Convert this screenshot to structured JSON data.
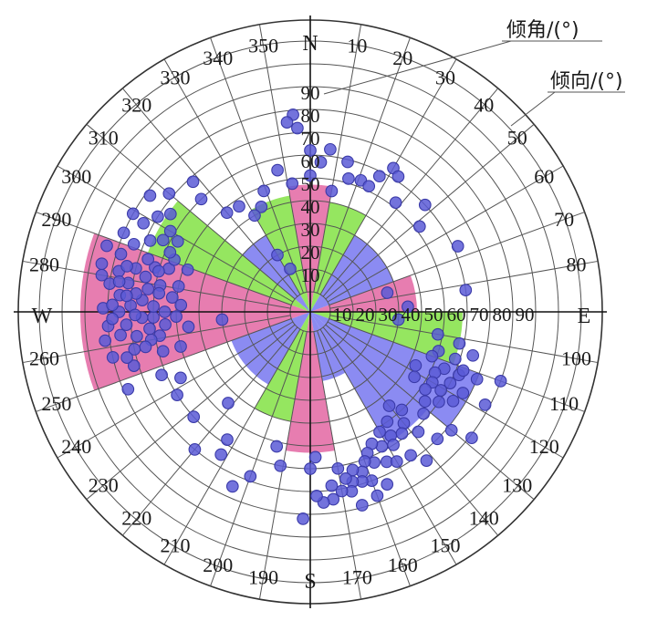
{
  "chart_data": {
    "type": "polar_scatter_rose",
    "title": "",
    "cardinals": {
      "n": "N",
      "e": "E",
      "s": "S",
      "w": "W"
    },
    "legend": {
      "dip_label": "倾角/(°)",
      "dip_direction_label": "倾向/(°)"
    },
    "azimuth_ticks": [
      10,
      20,
      30,
      40,
      50,
      60,
      70,
      80,
      100,
      110,
      120,
      130,
      140,
      150,
      160,
      170,
      190,
      200,
      210,
      220,
      230,
      240,
      250,
      260,
      280,
      290,
      300,
      310,
      320,
      330,
      340,
      350
    ],
    "dip_ticks_north": [
      10,
      20,
      30,
      40,
      50,
      60,
      70,
      80,
      90
    ],
    "dip_ticks_east": [
      10,
      20,
      30,
      40,
      50,
      60,
      70,
      80,
      90
    ],
    "colors": {
      "pink": "#e46ba5",
      "green": "#86e34a",
      "blue": "#7b7bf0",
      "points": "#5b5bd6"
    },
    "rose_petals": [
      {
        "from": 350,
        "to": 10,
        "length": 47,
        "color": "pink"
      },
      {
        "from": 10,
        "to": 30,
        "length": 40,
        "color": "green"
      },
      {
        "from": 30,
        "to": 70,
        "length": 30,
        "color": "blue"
      },
      {
        "from": 70,
        "to": 90,
        "length": 38,
        "color": "pink"
      },
      {
        "from": 90,
        "to": 110,
        "length": 58,
        "color": "green"
      },
      {
        "from": 110,
        "to": 130,
        "length": 70,
        "color": "blue"
      },
      {
        "from": 130,
        "to": 150,
        "length": 58,
        "color": "blue"
      },
      {
        "from": 150,
        "to": 170,
        "length": 22,
        "color": "blue"
      },
      {
        "from": 170,
        "to": 190,
        "length": 53,
        "color": "pink"
      },
      {
        "from": 190,
        "to": 210,
        "length": 40,
        "color": "green"
      },
      {
        "from": 210,
        "to": 250,
        "length": 28,
        "color": "blue"
      },
      {
        "from": 250,
        "to": 290,
        "length": 92,
        "color": "pink"
      },
      {
        "from": 290,
        "to": 310,
        "length": 67,
        "color": "green"
      },
      {
        "from": 310,
        "to": 330,
        "length": 30,
        "color": "blue"
      },
      {
        "from": 330,
        "to": 350,
        "length": 43,
        "color": "green"
      }
    ],
    "poles": [
      {
        "az": 355,
        "dip": 78
      },
      {
        "az": 356,
        "dip": 72
      },
      {
        "az": 353,
        "dip": 75
      },
      {
        "az": 0,
        "dip": 62
      },
      {
        "az": 4,
        "dip": 57
      },
      {
        "az": 7,
        "dip": 63
      },
      {
        "az": 347,
        "dip": 55
      },
      {
        "az": 352,
        "dip": 48
      },
      {
        "az": 0,
        "dip": 51
      },
      {
        "az": 10,
        "dip": 45
      },
      {
        "az": 14,
        "dip": 59
      },
      {
        "az": 16,
        "dip": 52
      },
      {
        "az": 21,
        "dip": 53
      },
      {
        "az": 25,
        "dip": 52
      },
      {
        "az": 27,
        "dip": 58
      },
      {
        "az": 30,
        "dip": 64
      },
      {
        "az": 33,
        "dip": 62
      },
      {
        "az": 38,
        "dip": 52
      },
      {
        "az": 47,
        "dip": 60
      },
      {
        "az": 52,
        "dip": 52
      },
      {
        "az": 66,
        "dip": 62
      },
      {
        "az": 82,
        "dip": 60
      },
      {
        "az": 102,
        "dip": 58
      },
      {
        "az": 76,
        "dip": 26
      },
      {
        "az": 87,
        "dip": 34
      },
      {
        "az": 339,
        "dip": 48
      },
      {
        "az": 335,
        "dip": 42
      },
      {
        "az": 330,
        "dip": 40
      },
      {
        "az": 326,
        "dip": 47
      },
      {
        "az": 320,
        "dip": 48
      },
      {
        "az": 316,
        "dip": 60
      },
      {
        "az": 318,
        "dip": 68
      },
      {
        "az": 330,
        "dip": 20
      },
      {
        "az": 335,
        "dip": 12
      },
      {
        "az": 95,
        "dip": 30
      },
      {
        "az": 100,
        "dip": 48
      },
      {
        "az": 107,
        "dip": 50
      },
      {
        "az": 110,
        "dip": 48
      },
      {
        "az": 113,
        "dip": 55
      },
      {
        "az": 116,
        "dip": 52
      },
      {
        "az": 120,
        "dip": 53
      },
      {
        "az": 124,
        "dip": 52
      },
      {
        "az": 113,
        "dip": 62
      },
      {
        "az": 117,
        "dip": 60
      },
      {
        "az": 121,
        "dip": 58
      },
      {
        "az": 125,
        "dip": 60
      },
      {
        "az": 108,
        "dip": 58
      },
      {
        "az": 111,
        "dip": 63
      },
      {
        "az": 118,
        "dip": 67
      },
      {
        "az": 105,
        "dip": 65
      },
      {
        "az": 128,
        "dip": 55
      },
      {
        "az": 122,
        "dip": 45
      },
      {
        "az": 117,
        "dip": 43
      },
      {
        "az": 122,
        "dip": 65
      },
      {
        "az": 112,
        "dip": 70
      },
      {
        "az": 140,
        "dip": 45
      },
      {
        "az": 137,
        "dip": 50
      },
      {
        "az": 140,
        "dip": 55
      },
      {
        "az": 145,
        "dip": 50
      },
      {
        "az": 143,
        "dip": 58
      },
      {
        "az": 147,
        "dip": 56
      },
      {
        "az": 150,
        "dip": 52
      },
      {
        "az": 148,
        "dip": 60
      },
      {
        "az": 152,
        "dip": 58
      },
      {
        "az": 155,
        "dip": 55
      },
      {
        "az": 158,
        "dip": 58
      },
      {
        "az": 153,
        "dip": 65
      },
      {
        "az": 157,
        "dip": 63
      },
      {
        "az": 160,
        "dip": 61
      },
      {
        "az": 162,
        "dip": 65
      },
      {
        "az": 165,
        "dip": 63
      },
      {
        "az": 160,
        "dip": 70
      },
      {
        "az": 163,
        "dip": 69
      },
      {
        "az": 166,
        "dip": 68
      },
      {
        "az": 168,
        "dip": 66
      },
      {
        "az": 170,
        "dip": 61
      },
      {
        "az": 167,
        "dip": 72
      },
      {
        "az": 170,
        "dip": 71
      },
      {
        "az": 173,
        "dip": 68
      },
      {
        "az": 173,
        "dip": 74
      },
      {
        "az": 176,
        "dip": 75
      },
      {
        "az": 156,
        "dip": 74
      },
      {
        "az": 150,
        "dip": 67
      },
      {
        "az": 135,
        "dip": 70
      },
      {
        "az": 142,
        "dip": 74
      },
      {
        "az": 145,
        "dip": 68
      },
      {
        "az": 160,
        "dip": 77
      },
      {
        "az": 165,
        "dip": 79
      },
      {
        "az": 138,
        "dip": 62
      },
      {
        "az": 132,
        "dip": 58
      },
      {
        "az": 130,
        "dip": 72
      },
      {
        "az": 128,
        "dip": 81
      },
      {
        "az": 118,
        "dip": 78
      },
      {
        "az": 110,
        "dip": 80
      },
      {
        "az": 178,
        "dip": 55
      },
      {
        "az": 180,
        "dip": 60
      },
      {
        "az": 178,
        "dip": 72
      },
      {
        "az": 182,
        "dip": 82
      },
      {
        "az": 191,
        "dip": 60
      },
      {
        "az": 194,
        "dip": 52
      },
      {
        "az": 200,
        "dip": 68
      },
      {
        "az": 204,
        "dip": 75
      },
      {
        "az": 213,
        "dip": 58
      },
      {
        "az": 212,
        "dip": 65
      },
      {
        "az": 220,
        "dip": 70
      },
      {
        "az": 228,
        "dip": 60
      },
      {
        "az": 222,
        "dip": 45
      },
      {
        "az": 238,
        "dip": 60
      },
      {
        "az": 247,
        "dip": 62
      },
      {
        "az": 243,
        "dip": 55
      },
      {
        "az": 255,
        "dip": 50
      },
      {
        "az": 255,
        "dip": 58
      },
      {
        "az": 263,
        "dip": 45
      },
      {
        "az": 265,
        "dip": 30
      },
      {
        "az": 258,
        "dip": 70
      },
      {
        "az": 253,
        "dip": 72
      },
      {
        "az": 247,
        "dip": 78
      },
      {
        "az": 268,
        "dip": 60
      },
      {
        "az": 270,
        "dip": 55
      },
      {
        "az": 272,
        "dip": 60
      },
      {
        "az": 268,
        "dip": 65
      },
      {
        "az": 274,
        "dip": 65
      },
      {
        "az": 272,
        "dip": 70
      },
      {
        "az": 276,
        "dip": 68
      },
      {
        "az": 278,
        "dip": 63
      },
      {
        "az": 280,
        "dip": 58
      },
      {
        "az": 282,
        "dip": 65
      },
      {
        "az": 270,
        "dip": 75
      },
      {
        "az": 266,
        "dip": 72
      },
      {
        "az": 262,
        "dip": 68
      },
      {
        "az": 263,
        "dip": 75
      },
      {
        "az": 275,
        "dip": 75
      },
      {
        "az": 279,
        "dip": 72
      },
      {
        "az": 284,
        "dip": 70
      },
      {
        "az": 286,
        "dip": 62
      },
      {
        "az": 287,
        "dip": 56
      },
      {
        "az": 291,
        "dip": 55
      },
      {
        "az": 289,
        "dip": 48
      },
      {
        "az": 281,
        "dip": 50
      },
      {
        "az": 276,
        "dip": 52
      },
      {
        "az": 273,
        "dip": 48
      },
      {
        "az": 268,
        "dip": 50
      },
      {
        "az": 265,
        "dip": 55
      },
      {
        "az": 261,
        "dip": 58
      },
      {
        "az": 264,
        "dip": 62
      },
      {
        "az": 260,
        "dip": 62
      },
      {
        "az": 258,
        "dip": 65
      },
      {
        "az": 257,
        "dip": 80
      },
      {
        "az": 266,
        "dip": 80
      },
      {
        "az": 271,
        "dip": 82
      },
      {
        "az": 278,
        "dip": 80
      },
      {
        "az": 282,
        "dip": 77
      },
      {
        "az": 287,
        "dip": 78
      },
      {
        "az": 291,
        "dip": 74
      },
      {
        "az": 294,
        "dip": 68
      },
      {
        "az": 296,
        "dip": 63
      },
      {
        "az": 293,
        "dip": 58
      },
      {
        "az": 298,
        "dip": 57
      },
      {
        "az": 300,
        "dip": 62
      },
      {
        "az": 302,
        "dip": 70
      },
      {
        "az": 305,
        "dip": 66
      },
      {
        "az": 298,
        "dip": 74
      },
      {
        "az": 293,
        "dip": 80
      },
      {
        "az": 288,
        "dip": 85
      },
      {
        "az": 283,
        "dip": 85
      },
      {
        "az": 285,
        "dip": 60
      },
      {
        "az": 277,
        "dip": 58
      },
      {
        "az": 269,
        "dip": 68
      },
      {
        "az": 272,
        "dip": 78
      },
      {
        "az": 288,
        "dip": 66
      },
      {
        "az": 284,
        "dip": 74
      },
      {
        "az": 279,
        "dip": 76
      },
      {
        "az": 262,
        "dip": 82
      },
      {
        "az": 256,
        "dip": 74
      },
      {
        "az": 280,
        "dip": 84
      },
      {
        "az": 275,
        "dip": 72
      },
      {
        "az": 268,
        "dip": 78
      },
      {
        "az": 299,
        "dip": 80
      },
      {
        "az": 306,
        "dip": 78
      },
      {
        "az": 310,
        "dip": 72
      }
    ]
  }
}
